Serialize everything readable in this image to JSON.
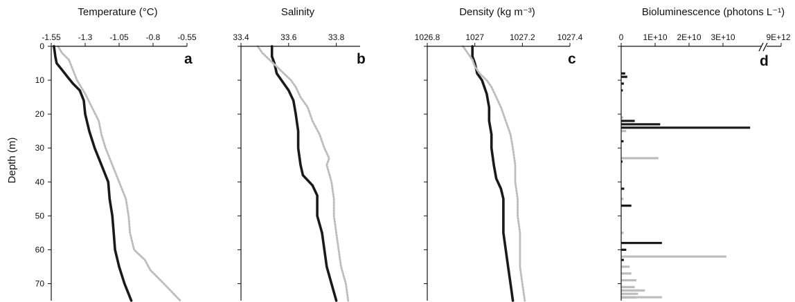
{
  "colors": {
    "series_dark": "#1a1a1a",
    "series_light": "#bdbdbd",
    "axis": "#111111"
  },
  "y_axis": {
    "label": "Depth (m)",
    "range": [
      0,
      75
    ],
    "ticks": [
      "0",
      "10",
      "20",
      "30",
      "40",
      "50",
      "60",
      "70"
    ]
  },
  "chart_data": [
    {
      "type": "line",
      "panel_letter": "a",
      "title": "Temperature (°C)",
      "xlabel": "Temperature (°C)",
      "ylabel": "Depth (m)",
      "xlim": [
        -1.55,
        -0.55
      ],
      "ylim": [
        0,
        75
      ],
      "y_inverted": true,
      "x_axis_position": "top",
      "xticks": [
        "-1.55",
        "-1.3",
        "-1.05",
        "-0.8",
        "-0.55"
      ],
      "series": [
        {
          "style": "solid-dark",
          "depth": [
            0,
            3,
            5,
            7,
            9,
            11,
            13,
            16,
            20,
            25,
            30,
            35,
            40,
            45,
            50,
            55,
            60,
            65,
            70,
            73,
            75
          ],
          "values": [
            -1.53,
            -1.52,
            -1.51,
            -1.47,
            -1.43,
            -1.39,
            -1.34,
            -1.31,
            -1.3,
            -1.27,
            -1.23,
            -1.18,
            -1.13,
            -1.12,
            -1.1,
            -1.09,
            -1.08,
            -1.05,
            -1.01,
            -0.98,
            -0.96
          ]
        },
        {
          "style": "dotted-light",
          "depth": [
            0,
            2,
            4,
            6,
            8,
            10,
            14,
            18,
            22,
            26,
            30,
            35,
            40,
            45,
            50,
            55,
            60,
            63,
            66,
            70,
            75
          ],
          "values": [
            -1.5,
            -1.47,
            -1.42,
            -1.4,
            -1.38,
            -1.36,
            -1.3,
            -1.25,
            -1.2,
            -1.18,
            -1.15,
            -1.1,
            -1.05,
            -1.0,
            -0.98,
            -0.97,
            -0.94,
            -0.86,
            -0.82,
            -0.72,
            -0.6
          ]
        }
      ]
    },
    {
      "type": "line",
      "panel_letter": "b",
      "title": "Salinity",
      "xlabel": "Salinity",
      "ylabel": "Depth (m)",
      "xlim": [
        33.4,
        33.9
      ],
      "ylim": [
        0,
        75
      ],
      "y_inverted": true,
      "x_axis_position": "top",
      "xticks": [
        "33.4",
        "33.6",
        "33.8"
      ],
      "series": [
        {
          "style": "solid-dark",
          "depth": [
            0,
            3,
            5,
            8,
            10,
            13,
            16,
            20,
            25,
            30,
            35,
            38,
            41,
            44,
            47,
            50,
            55,
            60,
            65,
            70,
            75
          ],
          "values": [
            33.53,
            33.53,
            33.54,
            33.55,
            33.57,
            33.6,
            33.62,
            33.63,
            33.64,
            33.64,
            33.65,
            33.66,
            33.7,
            33.72,
            33.72,
            33.72,
            33.74,
            33.75,
            33.76,
            33.78,
            33.8
          ]
        },
        {
          "style": "dotted-light",
          "depth": [
            0,
            2,
            4,
            6,
            8,
            10,
            12,
            15,
            18,
            22,
            26,
            30,
            33,
            35,
            40,
            45,
            50,
            55,
            60,
            65,
            70,
            75
          ],
          "values": [
            33.47,
            33.49,
            33.52,
            33.55,
            33.58,
            33.61,
            33.63,
            33.65,
            33.68,
            33.7,
            33.73,
            33.75,
            33.77,
            33.76,
            33.78,
            33.79,
            33.79,
            33.8,
            33.81,
            33.82,
            33.84,
            33.85
          ]
        }
      ]
    },
    {
      "type": "line",
      "panel_letter": "c",
      "title": "Density (kg m⁻³)",
      "xlabel": "Density (kg m⁻³)",
      "ylabel": "Depth (m)",
      "xlim": [
        1026.8,
        1027.4
      ],
      "ylim": [
        0,
        75
      ],
      "y_inverted": true,
      "x_axis_position": "top",
      "xticks": [
        "1026.8",
        "1027",
        "1027.2",
        "1027.4"
      ],
      "series": [
        {
          "style": "solid-dark",
          "depth": [
            0,
            3,
            5,
            8,
            10,
            14,
            18,
            22,
            26,
            30,
            35,
            39,
            42,
            45,
            50,
            55,
            60,
            65,
            70,
            75
          ],
          "values": [
            1026.99,
            1026.99,
            1027.0,
            1027.01,
            1027.03,
            1027.05,
            1027.06,
            1027.06,
            1027.07,
            1027.07,
            1027.08,
            1027.09,
            1027.11,
            1027.12,
            1027.12,
            1027.12,
            1027.13,
            1027.14,
            1027.15,
            1027.16
          ]
        },
        {
          "style": "dotted-light",
          "depth": [
            0,
            2,
            4,
            6,
            8,
            10,
            12,
            15,
            18,
            22,
            26,
            30,
            35,
            40,
            45,
            50,
            55,
            60,
            65,
            70,
            75
          ],
          "values": [
            1026.95,
            1026.97,
            1026.99,
            1027.0,
            1027.02,
            1027.05,
            1027.07,
            1027.09,
            1027.11,
            1027.13,
            1027.15,
            1027.16,
            1027.17,
            1027.17,
            1027.18,
            1027.18,
            1027.19,
            1027.19,
            1027.19,
            1027.2,
            1027.21
          ]
        }
      ]
    },
    {
      "type": "bar",
      "orientation": "horizontal",
      "panel_letter": "d",
      "title": "Bioluminescence (photons L⁻¹)",
      "xlabel": "Bioluminescence (photons L⁻¹)",
      "ylabel": "Depth (m)",
      "xlim": [
        0,
        40000000000
      ],
      "ylim": [
        0,
        75
      ],
      "y_inverted": true,
      "x_axis_position": "top",
      "axis_break_label": "9E+12",
      "xticks": [
        "0",
        "1E+10",
        "2E+10",
        "3E+10"
      ],
      "series": [
        {
          "style": "dark",
          "depth": [
            8,
            9,
            11,
            13,
            22,
            23,
            24,
            28,
            34,
            42,
            47,
            58,
            60,
            63,
            74
          ],
          "values": [
            1200000000,
            1800000000,
            800000000,
            500000000,
            4000000000,
            11500000000,
            38000000000,
            700000000,
            400000000,
            900000000,
            3000000000,
            12000000000,
            1500000000,
            800000000,
            4500000000
          ]
        },
        {
          "style": "light",
          "depth": [
            21,
            25,
            33,
            45,
            55,
            62,
            65,
            67,
            69,
            71,
            72,
            73,
            74
          ],
          "values": [
            600000000,
            1500000000,
            11000000000,
            700000000,
            700000000,
            31000000000,
            2500000000,
            3000000000,
            4500000000,
            4000000000,
            7000000000,
            5000000000,
            12000000000
          ]
        }
      ]
    }
  ]
}
